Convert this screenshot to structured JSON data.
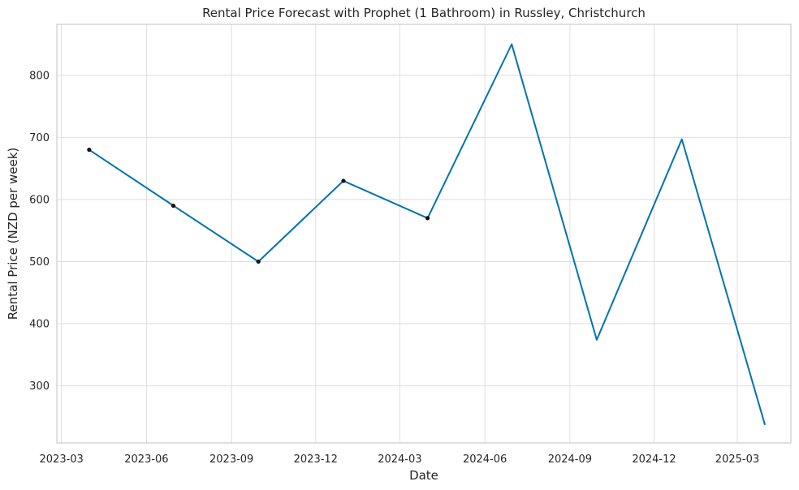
{
  "chart_data": {
    "type": "line",
    "title": "Rental Price Forecast with Prophet (1 Bathroom) in Russley, Christchurch",
    "xlabel": "Date",
    "ylabel": "Rental Price (NZD per week)",
    "x_ticks": [
      "2023-03",
      "2023-06",
      "2023-09",
      "2023-12",
      "2024-03",
      "2024-06",
      "2024-09",
      "2024-12",
      "2025-03"
    ],
    "y_ticks": [
      300,
      400,
      500,
      600,
      700,
      800
    ],
    "xlim": [
      "2023-02-24",
      "2025-04-28"
    ],
    "ylim": [
      208,
      882
    ],
    "grid": true,
    "observed": {
      "x": [
        "2023-03-31",
        "2023-06-30",
        "2023-09-30",
        "2023-12-31",
        "2024-03-31"
      ],
      "y": [
        680,
        590,
        500,
        630,
        570
      ]
    },
    "forecast": {
      "x": [
        "2023-03-31",
        "2023-06-30",
        "2023-09-30",
        "2023-12-31",
        "2024-03-31",
        "2024-06-30",
        "2024-09-30",
        "2024-12-31",
        "2025-03-31"
      ],
      "y": [
        680,
        590,
        500,
        630,
        570,
        850,
        374,
        697,
        237
      ]
    },
    "colors": {
      "line": "#0072b2",
      "points": "#111111",
      "grid": "#dedede"
    }
  }
}
